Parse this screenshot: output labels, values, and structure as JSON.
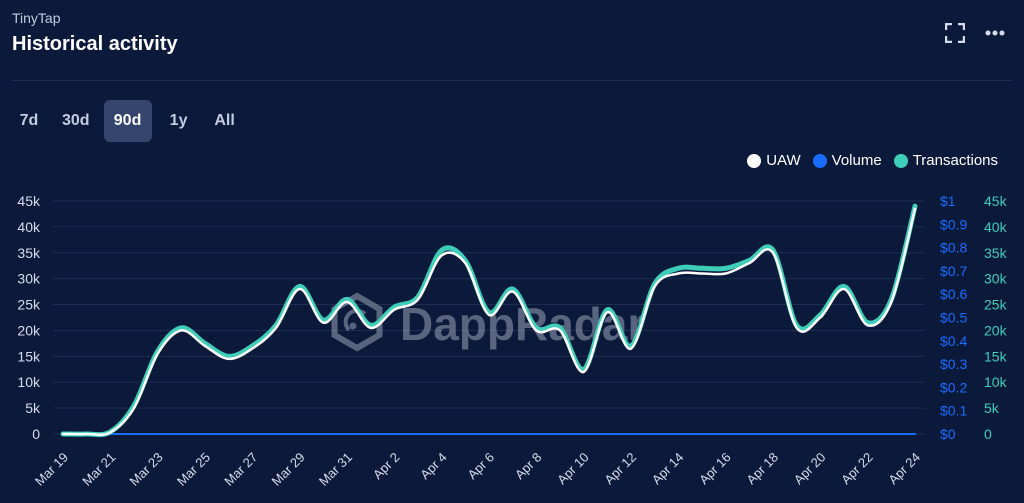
{
  "header": {
    "app_name": "TinyTap",
    "title": "Historical activity"
  },
  "icons": {
    "fullscreen": "fullscreen-icon",
    "more": "more-icon"
  },
  "periods": [
    {
      "label": "7d",
      "active": false
    },
    {
      "label": "30d",
      "active": false
    },
    {
      "label": "90d",
      "active": true
    },
    {
      "label": "1y",
      "active": false
    },
    {
      "label": "All",
      "active": false
    }
  ],
  "watermark": "DappRadar",
  "colors": {
    "uaw": "#ffffff",
    "volume": "#1a6bff",
    "transactions": "#3ecdb8",
    "background": "#0b1a3a",
    "grid": "#1e2e52"
  },
  "chart_data": {
    "type": "line",
    "legend_position": "top-right",
    "grid": true,
    "x_labels": [
      "Mar 19",
      "Mar 21",
      "Mar 23",
      "Mar 25",
      "Mar 27",
      "Mar 29",
      "Mar 31",
      "Apr 2",
      "Apr 4",
      "Apr 6",
      "Apr 8",
      "Apr 10",
      "Apr 12",
      "Apr 14",
      "Apr 16",
      "Apr 18",
      "Apr 20",
      "Apr 22",
      "Apr 24"
    ],
    "left_axis": {
      "ticks": [
        "0",
        "5k",
        "10k",
        "15k",
        "20k",
        "25k",
        "30k",
        "35k",
        "40k",
        "45k"
      ],
      "ylim": [
        0,
        45000
      ]
    },
    "right_axis_volume": {
      "ticks": [
        "$0",
        "$0.1",
        "$0.2",
        "$0.3",
        "$0.4",
        "$0.5",
        "$0.6",
        "$0.7",
        "$0.8",
        "$0.9",
        "$1"
      ],
      "ylim": [
        0,
        1
      ]
    },
    "right_axis_transactions": {
      "ticks": [
        "0",
        "5k",
        "10k",
        "15k",
        "20k",
        "25k",
        "30k",
        "35k",
        "40k",
        "45k"
      ],
      "ylim": [
        0,
        45000
      ]
    },
    "x": [
      "Mar 19",
      "Mar 20",
      "Mar 21",
      "Mar 22",
      "Mar 23",
      "Mar 24",
      "Mar 25",
      "Mar 26",
      "Mar 27",
      "Mar 28",
      "Mar 29",
      "Mar 30",
      "Mar 31",
      "Apr 1",
      "Apr 2",
      "Apr 3",
      "Apr 4",
      "Apr 5",
      "Apr 6",
      "Apr 7",
      "Apr 8",
      "Apr 9",
      "Apr 10",
      "Apr 11",
      "Apr 12",
      "Apr 13",
      "Apr 14",
      "Apr 15",
      "Apr 16",
      "Apr 17",
      "Apr 18",
      "Apr 19",
      "Apr 20",
      "Apr 21",
      "Apr 22",
      "Apr 23",
      "Apr 24"
    ],
    "series": [
      {
        "name": "Transactions",
        "axis": "transactions",
        "values": [
          0,
          0,
          400,
          5500,
          16000,
          20500,
          17500,
          15000,
          17000,
          21000,
          28500,
          22000,
          26000,
          21000,
          24500,
          26500,
          35500,
          33500,
          23500,
          28000,
          20500,
          20500,
          12500,
          24000,
          17000,
          29000,
          32000,
          32000,
          32000,
          33500,
          35500,
          21000,
          23000,
          28500,
          21500,
          26000,
          44000
        ]
      },
      {
        "name": "UAW",
        "axis": "left",
        "values": [
          0,
          0,
          300,
          5000,
          15500,
          20000,
          17000,
          14500,
          16500,
          20500,
          28000,
          21500,
          25500,
          20500,
          24000,
          26000,
          34500,
          33000,
          23000,
          27500,
          20000,
          20000,
          12000,
          23500,
          16500,
          28500,
          31000,
          31000,
          31000,
          33000,
          35000,
          20500,
          22500,
          28000,
          21000,
          25500,
          43500
        ]
      },
      {
        "name": "Volume",
        "axis": "volume",
        "values": [
          0,
          0,
          0,
          0,
          0,
          0,
          0,
          0,
          0,
          0,
          0,
          0,
          0,
          0,
          0,
          0,
          0,
          0,
          0,
          0,
          0,
          0,
          0,
          0,
          0,
          0,
          0,
          0,
          0,
          0,
          0,
          0,
          0,
          0,
          0,
          0,
          0
        ]
      }
    ]
  }
}
